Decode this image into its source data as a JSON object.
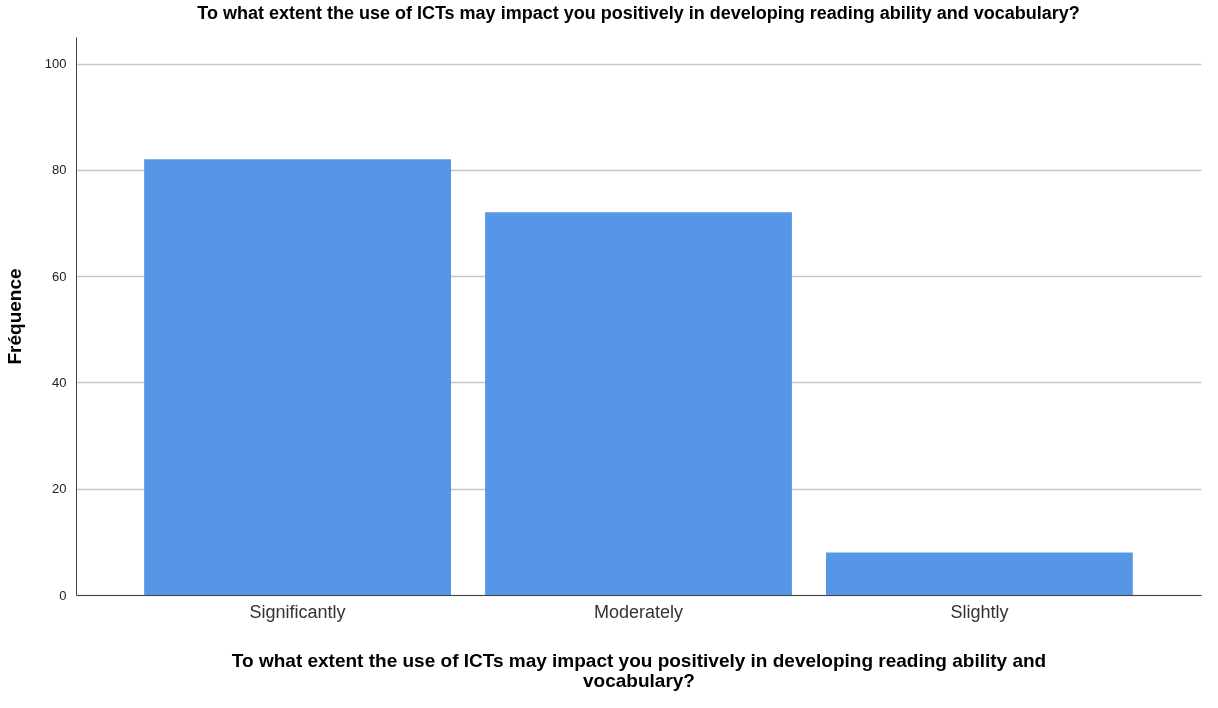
{
  "chart_data": {
    "type": "bar",
    "title": "To what extent the use of ICTs may impact you positively in developing reading ability and vocabulary?",
    "xlabel": "To what extent the use of ICTs may impact you positively in developing reading ability and vocabulary?",
    "ylabel": "Fréquence",
    "categories": [
      "Significantly",
      "Moderately",
      "Slightly"
    ],
    "values": [
      82,
      72,
      8
    ],
    "color": "#5596e6",
    "ylim": [
      0,
      105
    ],
    "yticks": [
      0,
      20,
      40,
      60,
      80,
      100
    ],
    "grid": "y"
  }
}
